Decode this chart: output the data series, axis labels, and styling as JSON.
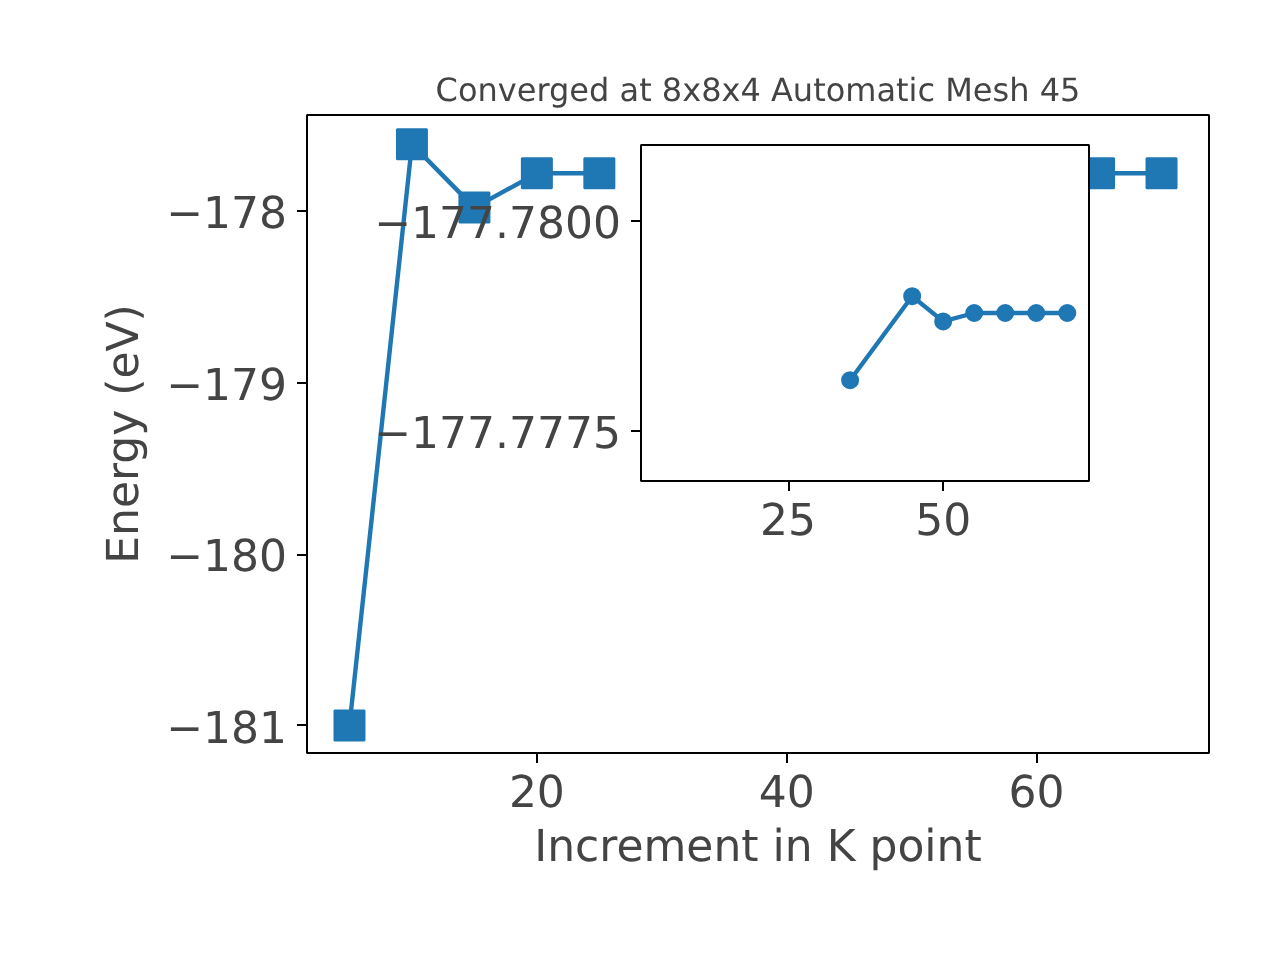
{
  "chart_data": [
    {
      "type": "line",
      "title": "Converged at 8x8x4 Automatic Mesh 45",
      "xlabel": "Increment in K point",
      "ylabel": "Energy (eV)",
      "marker": "square",
      "line_style": "solid",
      "x": [
        5,
        10,
        15,
        20,
        25,
        30,
        35,
        45,
        50,
        55,
        60,
        65,
        70
      ],
      "series": [
        {
          "color": "#1f77b4",
          "values": [
            -181.0,
            -177.61,
            -177.98,
            -177.78,
            -177.78,
            null,
            null,
            null,
            null,
            null,
            null,
            -177.78,
            -177.78
          ]
        }
      ],
      "xlim": [
        1.6,
        73.8
      ],
      "ylim": [
        -181.16,
        -177.44
      ],
      "xticks": [
        20,
        40,
        60
      ],
      "yticks": [
        {
          "value": -181,
          "label": "−181"
        },
        {
          "value": -180,
          "label": "−180"
        },
        {
          "value": -179,
          "label": "−179"
        },
        {
          "value": -178,
          "label": "−178"
        }
      ]
    },
    {
      "type": "line",
      "marker": "circle",
      "line_style": "solid",
      "x": [
        35,
        45,
        50,
        55,
        60,
        65,
        70
      ],
      "series": [
        {
          "color": "#1f77b4",
          "values": [
            -177.7781,
            -177.7791,
            -177.7788,
            -177.7789,
            -177.7789,
            -177.7789,
            -177.7789
          ]
        }
      ],
      "xlim": [
        1.3,
        73.5
      ],
      "ylim": [
        -177.7769,
        -177.7809
      ],
      "xticks": [
        25,
        50
      ],
      "yticks": [
        {
          "value": -177.78,
          "label": "−177.7800"
        },
        {
          "value": -177.7775,
          "label": "−177.7775"
        }
      ]
    }
  ]
}
